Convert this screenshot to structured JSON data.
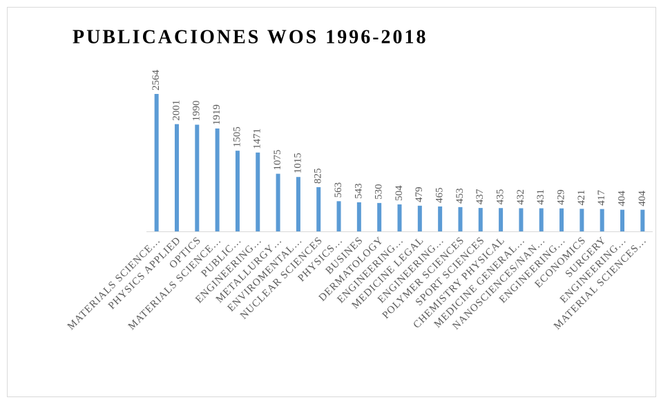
{
  "chart_data": {
    "type": "bar",
    "title": "PUBLICACIONES WOS 1996-2018",
    "categories": [
      "MATERIALS SCIENCE…",
      "PHYSICS APPLIED",
      "OPTICS",
      "MATERIALS SCIENCE…",
      "PUBLIC…",
      "ENGINEERING…",
      "METALLURGY…",
      "ENVIROMENTAL…",
      "NUCLEAR SCIENCES",
      "PHYSICS…",
      "BUSINES",
      "DERMATOLOGY",
      "ENGINEERING…",
      "MEDICINE LEGAL",
      "ENGINEERING…",
      "POLYMER SCIENCES",
      "SPORT SCIENCES",
      "CHEMISTRY PHYSICAL",
      "MEDICINE GENERAL…",
      "NANOSCIENCES/NAN…",
      "ENGINEERING…",
      "ECONOMICS",
      "SURGERY",
      "ENGINEERING…",
      "MATERIAL SCIENCES…"
    ],
    "values": [
      2564,
      2001,
      1990,
      1919,
      1505,
      1471,
      1075,
      1015,
      825,
      563,
      543,
      530,
      504,
      479,
      465,
      453,
      437,
      435,
      432,
      431,
      429,
      421,
      417,
      404,
      404
    ],
    "color": "#5b9bd5"
  }
}
